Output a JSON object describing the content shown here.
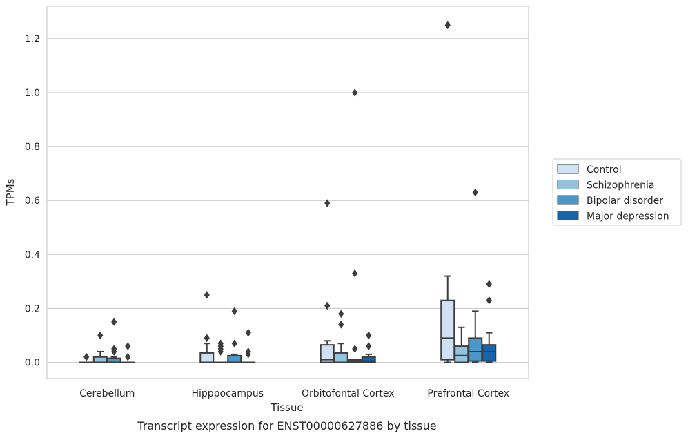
{
  "chart_data": {
    "type": "box",
    "title": "",
    "caption": "Transcript expression for ENST00000627886 by tissue",
    "xlabel": "Tissue",
    "ylabel": "TPMs",
    "ylim": [
      -0.06,
      1.32
    ],
    "yticks": [
      0.0,
      0.2,
      0.4,
      0.6,
      0.8,
      1.0,
      1.2
    ],
    "ytick_labels": [
      "0.0",
      "0.2",
      "0.4",
      "0.6",
      "0.8",
      "1.0",
      "1.2"
    ],
    "grid": "horizontal",
    "legend_position": "right",
    "categories": [
      "Cerebellum",
      "Hipppocampus",
      "Orbitofontal Cortex",
      "Prefrontal Cortex"
    ],
    "series": [
      {
        "name": "Control",
        "color": "#cfe1f2",
        "boxes": [
          {
            "q1": 0,
            "median": 0,
            "q3": 0,
            "whisker_low": 0,
            "whisker_high": 0,
            "outliers": [
              0.02
            ]
          },
          {
            "q1": 0,
            "median": 0,
            "q3": 0.035,
            "whisker_low": 0,
            "whisker_high": 0.07,
            "outliers": [
              0.09,
              0.25
            ]
          },
          {
            "q1": 0,
            "median": 0.01,
            "q3": 0.065,
            "whisker_low": 0,
            "whisker_high": 0.08,
            "outliers": [
              0.21,
              0.59
            ]
          },
          {
            "q1": 0.01,
            "median": 0.09,
            "q3": 0.23,
            "whisker_low": 0,
            "whisker_high": 0.32,
            "outliers": [
              1.25
            ]
          }
        ]
      },
      {
        "name": "Schizophrenia",
        "color": "#93c3df",
        "boxes": [
          {
            "q1": 0,
            "median": 0,
            "q3": 0.02,
            "whisker_low": 0,
            "whisker_high": 0.04,
            "outliers": [
              0.1
            ]
          },
          {
            "q1": 0,
            "median": 0,
            "q3": 0,
            "whisker_low": 0,
            "whisker_high": 0,
            "outliers": [
              0.04,
              0.05,
              0.06,
              0.07
            ]
          },
          {
            "q1": 0,
            "median": 0,
            "q3": 0.035,
            "whisker_low": 0,
            "whisker_high": 0.07,
            "outliers": [
              0.14,
              0.18
            ]
          },
          {
            "q1": 0,
            "median": 0.025,
            "q3": 0.06,
            "whisker_low": 0,
            "whisker_high": 0.13,
            "outliers": []
          }
        ]
      },
      {
        "name": "Bipolar disorder",
        "color": "#4b97c9",
        "boxes": [
          {
            "q1": 0,
            "median": 0,
            "q3": 0.015,
            "whisker_low": 0,
            "whisker_high": 0.02,
            "outliers": [
              0.04,
              0.05,
              0.15
            ]
          },
          {
            "q1": 0,
            "median": 0,
            "q3": 0.025,
            "whisker_low": 0,
            "whisker_high": 0.03,
            "outliers": [
              0.07,
              0.19
            ]
          },
          {
            "q1": 0,
            "median": 0.005,
            "q3": 0.01,
            "whisker_low": 0,
            "whisker_high": 0.01,
            "outliers": [
              0.05,
              0.33,
              1.0
            ]
          },
          {
            "q1": 0.005,
            "median": 0.04,
            "q3": 0.09,
            "whisker_low": 0,
            "whisker_high": 0.19,
            "outliers": [
              0.63
            ]
          }
        ]
      },
      {
        "name": "Major depression",
        "color": "#1764ab",
        "boxes": [
          {
            "q1": 0,
            "median": 0,
            "q3": 0,
            "whisker_low": 0,
            "whisker_high": 0,
            "outliers": [
              0.02,
              0.06
            ]
          },
          {
            "q1": 0,
            "median": 0,
            "q3": 0,
            "whisker_low": 0,
            "whisker_high": 0,
            "outliers": [
              0.03,
              0.04,
              0.11
            ]
          },
          {
            "q1": 0,
            "median": 0.005,
            "q3": 0.02,
            "whisker_low": 0,
            "whisker_high": 0.03,
            "outliers": [
              0.06,
              0.1
            ]
          },
          {
            "q1": 0.005,
            "median": 0.04,
            "q3": 0.065,
            "whisker_low": 0,
            "whisker_high": 0.11,
            "outliers": [
              0.23,
              0.29
            ]
          }
        ]
      }
    ]
  }
}
